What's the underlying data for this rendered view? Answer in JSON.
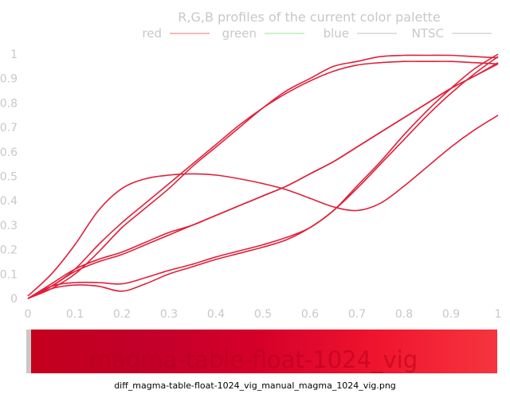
{
  "caption": "diff_magma-table-float-1024_vig_manual_magma_1024_vig.png",
  "colors": {
    "curve": "#e0203a",
    "text": "#c8c8c8",
    "legend_red": "#f07070",
    "legend_green": "#90e890",
    "legend_blue": "#c0c0c0",
    "legend_ntsc": "#c0c0c0"
  },
  "chart_data": {
    "type": "line",
    "title": "R,G,B profiles of the current color palette",
    "xlabel": "",
    "ylabel": "",
    "xlim": [
      0,
      1
    ],
    "ylim": [
      0,
      1
    ],
    "x_ticks": [
      0,
      0.1,
      0.2,
      0.3,
      0.4,
      0.5,
      0.6,
      0.7,
      0.8,
      0.9,
      1
    ],
    "y_ticks": [
      0,
      0.1,
      0.2,
      0.3,
      0.4,
      0.5,
      0.6,
      0.7,
      0.8,
      0.9,
      1
    ],
    "x_tick_labels": [
      "0",
      "0.1",
      "0.2",
      "0.3",
      "0.4",
      "0.5",
      "0.6",
      "0.7",
      "0.8",
      "0.9",
      "1"
    ],
    "y_tick_labels": [
      "0",
      "0.1",
      "0.2",
      "0.3",
      "0.4",
      "0.5",
      "0.6",
      "0.7",
      "0.8",
      "0.9",
      "1"
    ],
    "legend_position": "top",
    "grid": false,
    "x": [
      0,
      0.05,
      0.1,
      0.15,
      0.2,
      0.25,
      0.3,
      0.35,
      0.4,
      0.45,
      0.5,
      0.55,
      0.6,
      0.65,
      0.7,
      0.75,
      0.8,
      0.85,
      0.9,
      0.95,
      1
    ],
    "series": [
      {
        "name": "red",
        "values": [
          0.01,
          0.1,
          0.22,
          0.36,
          0.45,
          0.49,
          0.505,
          0.51,
          0.505,
          0.49,
          0.47,
          0.445,
          0.41,
          0.375,
          0.36,
          0.39,
          0.46,
          0.54,
          0.62,
          0.69,
          0.75
        ]
      },
      {
        "name": "red",
        "values": [
          0.0,
          0.05,
          0.12,
          0.22,
          0.31,
          0.39,
          0.47,
          0.55,
          0.63,
          0.71,
          0.78,
          0.84,
          0.89,
          0.93,
          0.955,
          0.965,
          0.97,
          0.97,
          0.97,
          0.965,
          0.96
        ]
      },
      {
        "name": "red",
        "values": [
          0.0,
          0.04,
          0.1,
          0.19,
          0.29,
          0.37,
          0.45,
          0.54,
          0.62,
          0.7,
          0.78,
          0.85,
          0.9,
          0.95,
          0.97,
          0.99,
          0.995,
          0.995,
          0.995,
          0.99,
          0.985
        ]
      },
      {
        "name": "green",
        "values": [
          0.0,
          0.04,
          0.055,
          0.05,
          0.03,
          0.06,
          0.1,
          0.13,
          0.16,
          0.185,
          0.21,
          0.24,
          0.29,
          0.36,
          0.46,
          0.56,
          0.67,
          0.77,
          0.86,
          0.94,
          1.0
        ]
      },
      {
        "name": "green",
        "values": [
          0.0,
          0.05,
          0.065,
          0.065,
          0.06,
          0.085,
          0.115,
          0.14,
          0.17,
          0.195,
          0.22,
          0.25,
          0.29,
          0.36,
          0.45,
          0.55,
          0.65,
          0.75,
          0.84,
          0.92,
          0.99
        ]
      },
      {
        "name": "blue",
        "values": [
          0.0,
          0.05,
          0.11,
          0.15,
          0.18,
          0.22,
          0.26,
          0.3,
          0.34,
          0.38,
          0.42,
          0.46,
          0.51,
          0.56,
          0.62,
          0.68,
          0.74,
          0.8,
          0.86,
          0.91,
          0.96
        ]
      },
      {
        "name": "NTSC",
        "values": [
          0.0,
          0.06,
          0.12,
          0.16,
          0.19,
          0.23,
          0.27,
          0.3,
          0.34,
          0.38,
          0.42,
          0.46,
          0.51,
          0.56,
          0.62,
          0.68,
          0.74,
          0.8,
          0.86,
          0.91,
          0.965
        ]
      }
    ],
    "legend": [
      "red",
      "green",
      "blue",
      "NTSC"
    ],
    "colorbar": {
      "label": "magma-table-float-1024_vig",
      "stops": [
        "#c4001c",
        "#c2002a",
        "#d6002a",
        "#f0152e",
        "#f5353f"
      ]
    }
  }
}
